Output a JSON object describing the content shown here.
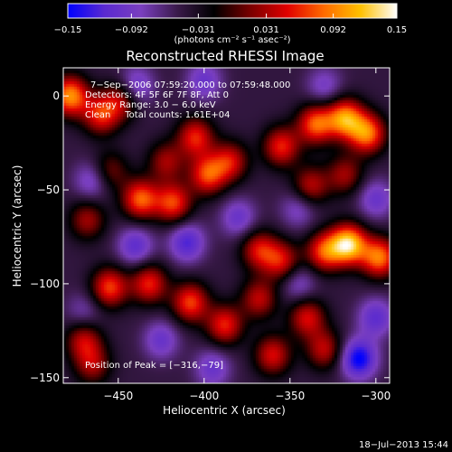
{
  "chart_data": {
    "type": "heatmap",
    "title": "Reconstructed RHESSI Image",
    "xlabel": "Heliocentric X (arcsec)",
    "ylabel": "Heliocentric Y (arcsec)",
    "xlim": [
      -482,
      -292
    ],
    "ylim": [
      -153,
      15
    ],
    "x_ticks": [
      {
        "value": -450,
        "label": "−450"
      },
      {
        "value": -400,
        "label": "−400"
      },
      {
        "value": -350,
        "label": "−350"
      },
      {
        "value": -300,
        "label": "−300"
      }
    ],
    "y_ticks": [
      {
        "value": 0,
        "label": "0"
      },
      {
        "value": -50,
        "label": "−50"
      },
      {
        "value": -100,
        "label": "−100"
      },
      {
        "value": -150,
        "label": "−150"
      }
    ],
    "colorbar": {
      "min": -0.15,
      "max": 0.15,
      "tick_values": [
        -0.15,
        -0.092,
        -0.031,
        0.031,
        0.092,
        0.15
      ],
      "tick_labels": [
        "−0.15",
        "−0.092",
        "−0.031",
        "0.031",
        "0.092",
        "0.15"
      ],
      "units": "(photons cm⁻² s⁻¹ asec⁻²)",
      "colors": [
        "#0000ff",
        "#5a2ad0",
        "#7a3fbf",
        "#3a1a4a",
        "#000000",
        "#7a0000",
        "#e00000",
        "#ff6a00",
        "#ffc000",
        "#ffffff"
      ]
    },
    "annotations": [
      "7−Sep−2006 07:59:20.000 to 07:59:48.000",
      "Detectors: 4F 5F 6F 7F 8F, Att 0",
      "Energy Range: 3.0 − 6.0 keV",
      "Clean     Total counts: 1.61E+04"
    ],
    "peak_label": "Position of Peak = [−316,−79]",
    "peak": {
      "x": -316,
      "y": -79
    },
    "bright_features": [
      {
        "x": -478,
        "y": 0,
        "v": 0.12
      },
      {
        "x": -460,
        "y": -10,
        "v": 0.08
      },
      {
        "x": -448,
        "y": -2,
        "v": 0.06
      },
      {
        "x": -468,
        "y": -66,
        "v": 0.05
      },
      {
        "x": -455,
        "y": -40,
        "v": 0.04
      },
      {
        "x": -437,
        "y": -55,
        "v": 0.1
      },
      {
        "x": -418,
        "y": -57,
        "v": 0.09
      },
      {
        "x": -422,
        "y": -35,
        "v": 0.05
      },
      {
        "x": -405,
        "y": -22,
        "v": 0.08
      },
      {
        "x": -398,
        "y": -42,
        "v": 0.09
      },
      {
        "x": -385,
        "y": -35,
        "v": 0.07
      },
      {
        "x": -355,
        "y": -27,
        "v": 0.08
      },
      {
        "x": -335,
        "y": -15,
        "v": 0.1
      },
      {
        "x": -318,
        "y": -12,
        "v": 0.12
      },
      {
        "x": -305,
        "y": -20,
        "v": 0.11
      },
      {
        "x": -338,
        "y": -48,
        "v": 0.06
      },
      {
        "x": -318,
        "y": -42,
        "v": 0.05
      },
      {
        "x": -368,
        "y": -82,
        "v": 0.07
      },
      {
        "x": -330,
        "y": -83,
        "v": 0.09
      },
      {
        "x": -316,
        "y": -79,
        "v": 0.15
      },
      {
        "x": -298,
        "y": -86,
        "v": 0.11
      },
      {
        "x": -355,
        "y": -88,
        "v": 0.07
      },
      {
        "x": -455,
        "y": -102,
        "v": 0.09
      },
      {
        "x": -432,
        "y": -100,
        "v": 0.08
      },
      {
        "x": -408,
        "y": -110,
        "v": 0.09
      },
      {
        "x": -388,
        "y": -122,
        "v": 0.08
      },
      {
        "x": -368,
        "y": -108,
        "v": 0.06
      },
      {
        "x": -340,
        "y": -118,
        "v": 0.07
      },
      {
        "x": -470,
        "y": -130,
        "v": 0.06
      },
      {
        "x": -465,
        "y": -143,
        "v": 0.05
      },
      {
        "x": -360,
        "y": -138,
        "v": 0.07
      },
      {
        "x": -330,
        "y": -135,
        "v": 0.06
      }
    ],
    "dark_features": [
      {
        "x": -440,
        "y": 5,
        "v": -0.09
      },
      {
        "x": -400,
        "y": 8,
        "v": -0.08
      },
      {
        "x": -330,
        "y": 5,
        "v": -0.07
      },
      {
        "x": -465,
        "y": -45,
        "v": -0.08
      },
      {
        "x": -440,
        "y": -80,
        "v": -0.09
      },
      {
        "x": -410,
        "y": -78,
        "v": -0.1
      },
      {
        "x": -380,
        "y": -65,
        "v": -0.08
      },
      {
        "x": -345,
        "y": -60,
        "v": -0.07
      },
      {
        "x": -300,
        "y": -55,
        "v": -0.08
      },
      {
        "x": -425,
        "y": -130,
        "v": -0.08
      },
      {
        "x": -345,
        "y": -100,
        "v": -0.07
      },
      {
        "x": -310,
        "y": -140,
        "v": -0.13
      },
      {
        "x": -300,
        "y": -118,
        "v": -0.09
      },
      {
        "x": -395,
        "y": -145,
        "v": -0.08
      },
      {
        "x": -470,
        "y": -115,
        "v": -0.06
      }
    ]
  },
  "footer": {
    "timestamp": "18−Jul−2013 15:44"
  }
}
